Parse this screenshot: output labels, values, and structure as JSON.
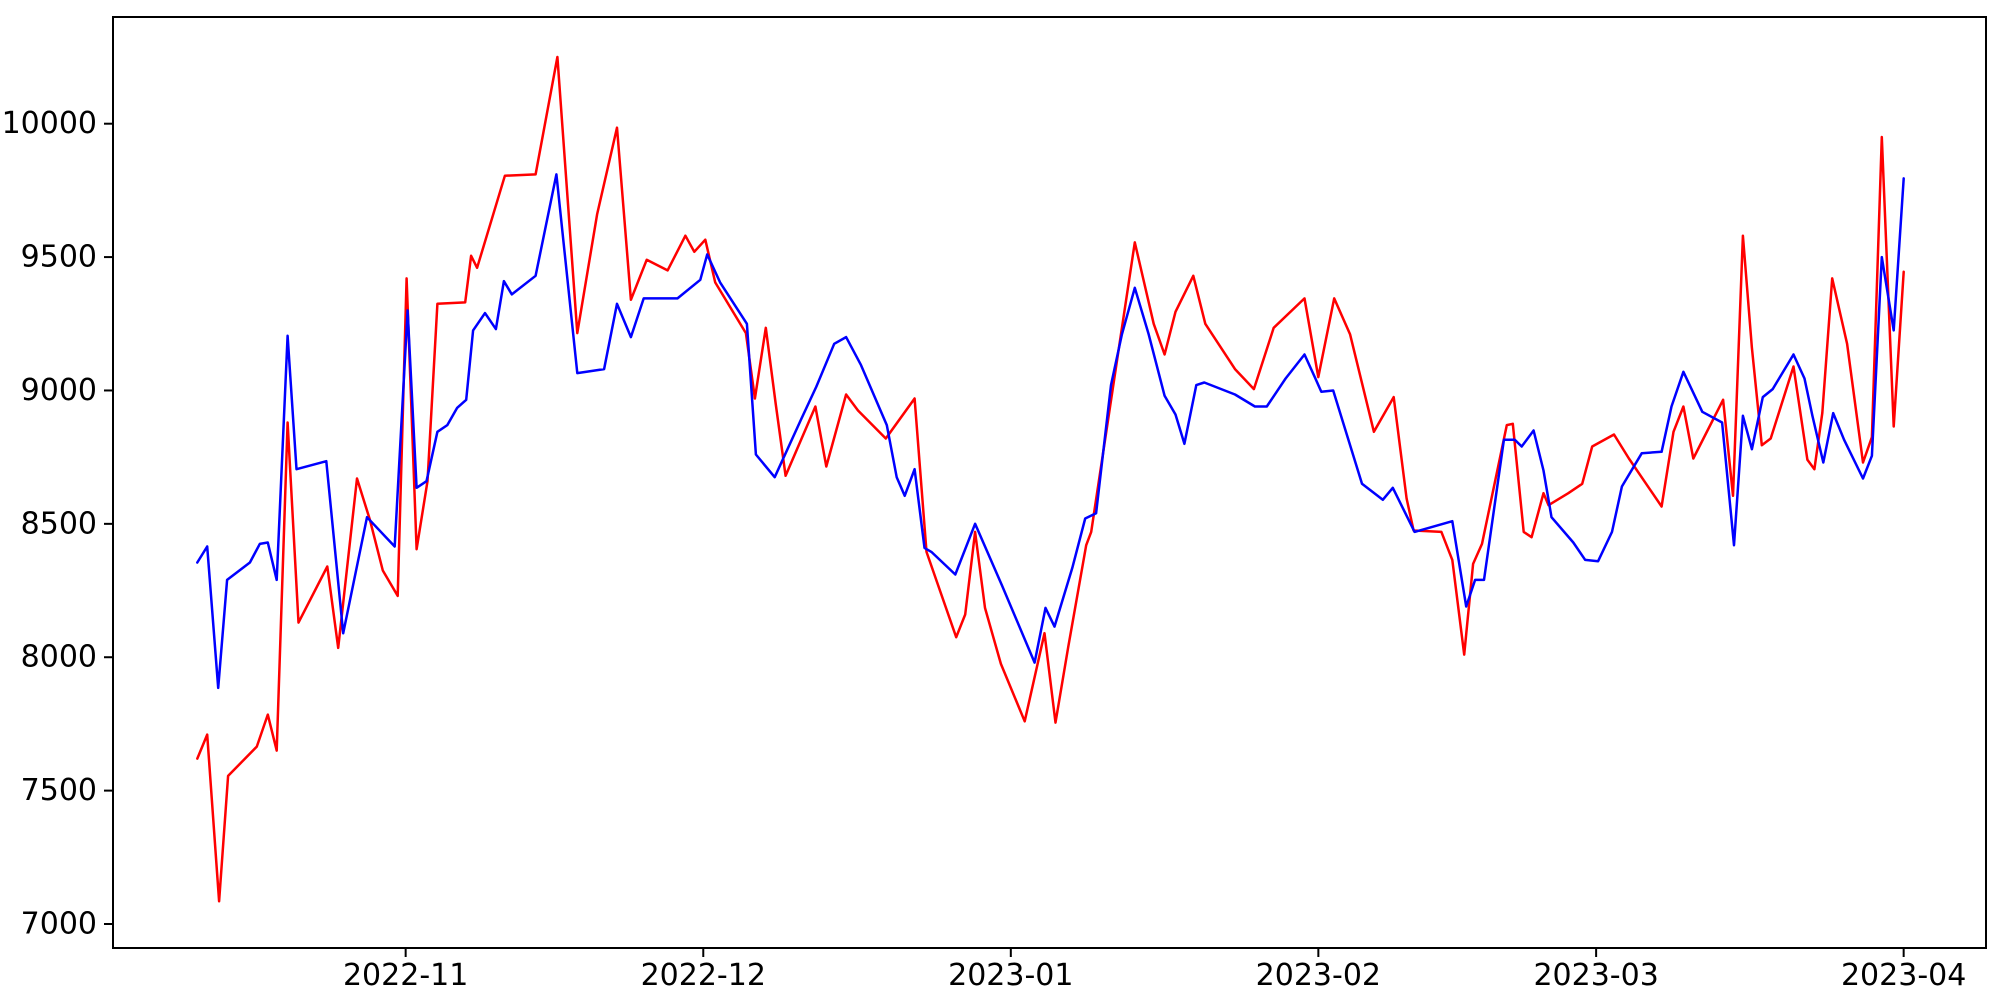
{
  "figure": {
    "background": "#ffffff",
    "plot_background": "#ffffff",
    "spine_color": "#000000",
    "tick_color": "#000000",
    "tick_font_px": 30
  },
  "chart_data": {
    "type": "line",
    "title": "",
    "xlabel": "",
    "ylabel": "",
    "grid": false,
    "legend": "none",
    "x_axis": {
      "kind": "date",
      "start_date": "2022-10-11",
      "end_date": "2023-04-01",
      "domain_days": [
        -8.5,
        180.3
      ],
      "tick_day_offsets": [
        21,
        51,
        82,
        113,
        141,
        172
      ],
      "tick_labels": [
        "2022-11",
        "2022-12",
        "2023-01",
        "2023-02",
        "2023-03",
        "2023-04"
      ]
    },
    "y_axis": {
      "domain": [
        6910,
        10400
      ],
      "ticks": [
        7000,
        7500,
        8000,
        8500,
        9000,
        9500,
        10000
      ],
      "tick_labels": [
        "7000",
        "7500",
        "8000",
        "8500",
        "9000",
        "9500",
        "10000"
      ]
    },
    "series": [
      {
        "name": "red-series",
        "color": "#ff0000",
        "line_width": 2.5,
        "points": [
          [
            0,
            7620
          ],
          [
            1,
            7710
          ],
          [
            2.2,
            7085
          ],
          [
            3.1,
            7555
          ],
          [
            6,
            7665
          ],
          [
            7.1,
            7785
          ],
          [
            8,
            7650
          ],
          [
            9.1,
            8880
          ],
          [
            10.2,
            8130
          ],
          [
            13.1,
            8340
          ],
          [
            14.2,
            8035
          ],
          [
            16.1,
            8670
          ],
          [
            17.4,
            8515
          ],
          [
            18.7,
            8325
          ],
          [
            20.2,
            8230
          ],
          [
            21.1,
            9420
          ],
          [
            22.1,
            8405
          ],
          [
            23.2,
            8660
          ],
          [
            24.2,
            9325
          ],
          [
            27,
            9330
          ],
          [
            27.6,
            9505
          ],
          [
            28.2,
            9460
          ],
          [
            31,
            9805
          ],
          [
            34.1,
            9810
          ],
          [
            36.3,
            10250
          ],
          [
            38.3,
            9215
          ],
          [
            40.3,
            9660
          ],
          [
            42.3,
            9985
          ],
          [
            43.7,
            9340
          ],
          [
            45.3,
            9490
          ],
          [
            47.4,
            9450
          ],
          [
            49.2,
            9580
          ],
          [
            50.1,
            9520
          ],
          [
            51.2,
            9565
          ],
          [
            52.2,
            9405
          ],
          [
            55.3,
            9215
          ],
          [
            56.2,
            8970
          ],
          [
            57.3,
            9235
          ],
          [
            58.3,
            8950
          ],
          [
            59.3,
            8680
          ],
          [
            62.3,
            8940
          ],
          [
            63.4,
            8715
          ],
          [
            65.4,
            8985
          ],
          [
            66.6,
            8925
          ],
          [
            69.4,
            8820
          ],
          [
            72.3,
            8970
          ],
          [
            73.5,
            8395
          ],
          [
            76.5,
            8075
          ],
          [
            77.4,
            8160
          ],
          [
            78.4,
            8470
          ],
          [
            79.4,
            8185
          ],
          [
            81,
            7975
          ],
          [
            83.4,
            7760
          ],
          [
            85.4,
            8090
          ],
          [
            86.5,
            7755
          ],
          [
            87.8,
            8040
          ],
          [
            89.6,
            8420
          ],
          [
            90.1,
            8470
          ],
          [
            94.5,
            9555
          ],
          [
            96.4,
            9250
          ],
          [
            97.5,
            9135
          ],
          [
            98.6,
            9295
          ],
          [
            100.4,
            9430
          ],
          [
            101.6,
            9250
          ],
          [
            104.6,
            9080
          ],
          [
            106.5,
            9005
          ],
          [
            108.5,
            9235
          ],
          [
            111.6,
            9345
          ],
          [
            113,
            9050
          ],
          [
            114.6,
            9345
          ],
          [
            116.2,
            9210
          ],
          [
            118.6,
            8845
          ],
          [
            120.6,
            8975
          ],
          [
            121.9,
            8595
          ],
          [
            122.6,
            8475
          ],
          [
            125.4,
            8470
          ],
          [
            126.5,
            8365
          ],
          [
            127.7,
            8010
          ],
          [
            128.6,
            8350
          ],
          [
            129.5,
            8425
          ],
          [
            132,
            8870
          ],
          [
            132.6,
            8875
          ],
          [
            133.7,
            8470
          ],
          [
            134.5,
            8450
          ],
          [
            135.7,
            8615
          ],
          [
            136.2,
            8570
          ],
          [
            138.2,
            8615
          ],
          [
            139.6,
            8650
          ],
          [
            140.6,
            8790
          ],
          [
            142.8,
            8835
          ],
          [
            144.3,
            8745
          ],
          [
            147.6,
            8565
          ],
          [
            148.8,
            8845
          ],
          [
            149.8,
            8940
          ],
          [
            150.8,
            8745
          ],
          [
            153.8,
            8965
          ],
          [
            154.8,
            8605
          ],
          [
            155.8,
            9580
          ],
          [
            156.7,
            9160
          ],
          [
            157.7,
            8795
          ],
          [
            158.6,
            8820
          ],
          [
            160.9,
            9090
          ],
          [
            162.3,
            8740
          ],
          [
            163,
            8705
          ],
          [
            163.8,
            8915
          ],
          [
            164.8,
            9420
          ],
          [
            166.3,
            9175
          ],
          [
            167.9,
            8730
          ],
          [
            168.8,
            8825
          ],
          [
            169.8,
            9950
          ],
          [
            171,
            8865
          ],
          [
            172,
            9445
          ]
        ]
      },
      {
        "name": "blue-series",
        "color": "#0000ff",
        "line_width": 2.5,
        "points": [
          [
            0,
            8355
          ],
          [
            1,
            8415
          ],
          [
            2.1,
            7885
          ],
          [
            3,
            8290
          ],
          [
            5.3,
            8355
          ],
          [
            6.3,
            8425
          ],
          [
            7.1,
            8430
          ],
          [
            8,
            8290
          ],
          [
            9.1,
            9205
          ],
          [
            10,
            8705
          ],
          [
            13,
            8735
          ],
          [
            14.7,
            8090
          ],
          [
            17.1,
            8525
          ],
          [
            19.9,
            8415
          ],
          [
            21.2,
            9300
          ],
          [
            22.1,
            8635
          ],
          [
            23.1,
            8660
          ],
          [
            24.2,
            8845
          ],
          [
            25.2,
            8870
          ],
          [
            26.2,
            8935
          ],
          [
            27.1,
            8965
          ],
          [
            27.8,
            9225
          ],
          [
            29,
            9290
          ],
          [
            30.1,
            9230
          ],
          [
            30.9,
            9410
          ],
          [
            31.7,
            9360
          ],
          [
            34.1,
            9430
          ],
          [
            36.2,
            9810
          ],
          [
            38.3,
            9065
          ],
          [
            41,
            9080
          ],
          [
            42.3,
            9325
          ],
          [
            43.7,
            9200
          ],
          [
            45,
            9345
          ],
          [
            48.4,
            9345
          ],
          [
            50.7,
            9415
          ],
          [
            51.4,
            9510
          ],
          [
            52.7,
            9405
          ],
          [
            55.4,
            9250
          ],
          [
            56.3,
            8760
          ],
          [
            58.2,
            8675
          ],
          [
            60.9,
            8895
          ],
          [
            62.4,
            9015
          ],
          [
            64.2,
            9175
          ],
          [
            65.4,
            9200
          ],
          [
            66.9,
            9095
          ],
          [
            69.5,
            8870
          ],
          [
            70.5,
            8675
          ],
          [
            71.3,
            8605
          ],
          [
            72.3,
            8705
          ],
          [
            73.3,
            8410
          ],
          [
            74,
            8395
          ],
          [
            76.4,
            8310
          ],
          [
            78.4,
            8500
          ],
          [
            81.1,
            8270
          ],
          [
            84.4,
            7980
          ],
          [
            85.5,
            8185
          ],
          [
            86.4,
            8115
          ],
          [
            88.2,
            8335
          ],
          [
            89.5,
            8520
          ],
          [
            90.6,
            8540
          ],
          [
            92.1,
            9020
          ],
          [
            93.2,
            9210
          ],
          [
            94.5,
            9385
          ],
          [
            95.9,
            9210
          ],
          [
            97.5,
            8980
          ],
          [
            98.6,
            8910
          ],
          [
            99.5,
            8800
          ],
          [
            100.7,
            9020
          ],
          [
            101.5,
            9030
          ],
          [
            104.6,
            8985
          ],
          [
            106.6,
            8940
          ],
          [
            107.8,
            8940
          ],
          [
            109.7,
            9045
          ],
          [
            111.6,
            9135
          ],
          [
            112.7,
            9045
          ],
          [
            113.3,
            8995
          ],
          [
            114.5,
            9000
          ],
          [
            117.4,
            8650
          ],
          [
            119.5,
            8590
          ],
          [
            120.5,
            8635
          ],
          [
            122.7,
            8470
          ],
          [
            126.5,
            8510
          ],
          [
            127.9,
            8190
          ],
          [
            128.8,
            8290
          ],
          [
            129.7,
            8290
          ],
          [
            131.7,
            8815
          ],
          [
            132.8,
            8815
          ],
          [
            133.5,
            8790
          ],
          [
            134.7,
            8850
          ],
          [
            135.7,
            8700
          ],
          [
            136.5,
            8525
          ],
          [
            138.7,
            8430
          ],
          [
            139.9,
            8365
          ],
          [
            141.2,
            8360
          ],
          [
            142.6,
            8470
          ],
          [
            143.6,
            8640
          ],
          [
            145.6,
            8765
          ],
          [
            147.6,
            8770
          ],
          [
            148.6,
            8940
          ],
          [
            149.8,
            9070
          ],
          [
            151.7,
            8920
          ],
          [
            153.7,
            8880
          ],
          [
            154.9,
            8420
          ],
          [
            155.8,
            8905
          ],
          [
            156.7,
            8780
          ],
          [
            157.8,
            8975
          ],
          [
            158.8,
            9005
          ],
          [
            160.9,
            9135
          ],
          [
            162,
            9045
          ],
          [
            162.8,
            8905
          ],
          [
            163.9,
            8730
          ],
          [
            164.9,
            8915
          ],
          [
            166,
            8815
          ],
          [
            167.9,
            8670
          ],
          [
            168.8,
            8755
          ],
          [
            169.8,
            9500
          ],
          [
            171,
            9225
          ],
          [
            172,
            9795
          ]
        ]
      }
    ]
  }
}
